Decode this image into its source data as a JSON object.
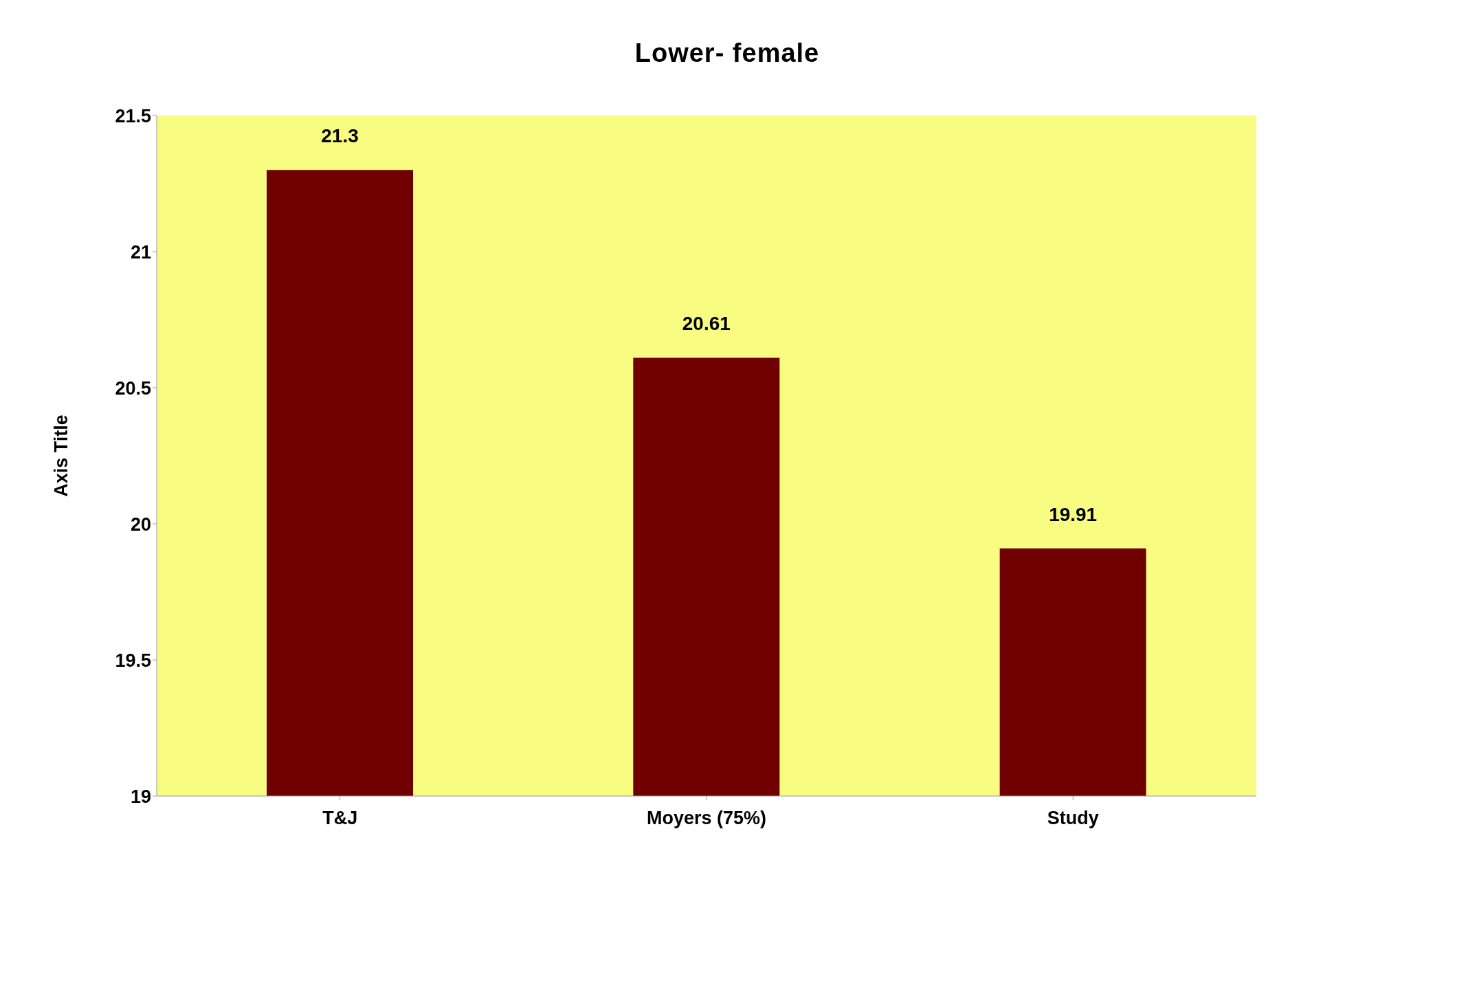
{
  "chart_data": {
    "type": "bar",
    "title": "Lower- female",
    "ylabel": "Axis Title",
    "categories": [
      "T&J",
      "Moyers (75%)",
      "Study"
    ],
    "values": [
      21.3,
      20.61,
      19.91
    ],
    "color": "#700000",
    "ylim": [
      19,
      21.5
    ],
    "yticks": [
      19,
      19.5,
      20,
      20.5,
      21,
      21.5
    ],
    "data_labels": true,
    "grid": false,
    "legend": false
  }
}
